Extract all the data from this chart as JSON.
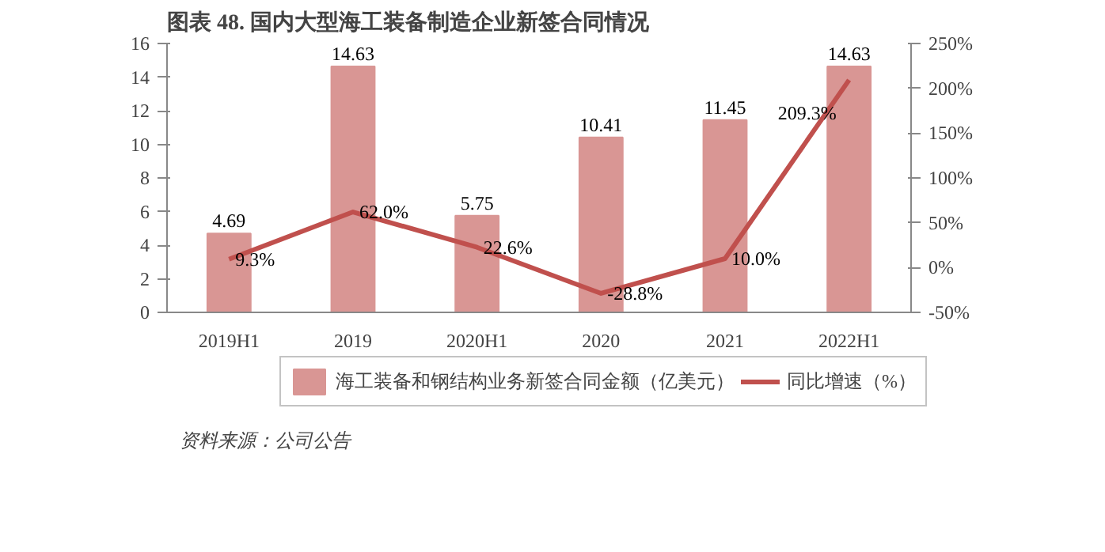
{
  "chart_data": {
    "type": "bar",
    "title": "图表 48. 国内大型海工装备制造企业新签合同情况",
    "categories": [
      "2019H1",
      "2019",
      "2020H1",
      "2020",
      "2021",
      "2022H1"
    ],
    "series": [
      {
        "name": "海工装备和钢结构业务新签合同金额（亿美元）",
        "color": "#d99694",
        "values": [
          4.69,
          14.63,
          5.75,
          10.41,
          11.45,
          14.63
        ],
        "value_labels": [
          "4.69",
          "14.63",
          "5.75",
          "10.41",
          "11.45",
          "14.63"
        ]
      },
      {
        "name": "同比增速（%）",
        "type": "line",
        "axis": "y2",
        "color": "#c0504d",
        "values": [
          9.3,
          62.0,
          22.6,
          -28.8,
          10.0,
          209.3
        ],
        "value_labels": [
          "9.3%",
          "62.0%",
          "22.6%",
          "-28.8%",
          "10.0%",
          "209.3%"
        ]
      }
    ],
    "ylim": [
      0,
      16
    ],
    "yticks": [
      0,
      2,
      4,
      6,
      8,
      10,
      12,
      14,
      16
    ],
    "y2lim": [
      -50,
      250
    ],
    "y2ticks": [
      {
        "value": -50,
        "label": "-50%"
      },
      {
        "value": 0,
        "label": "0%"
      },
      {
        "value": 50,
        "label": "50%"
      },
      {
        "value": 100,
        "label": "100%"
      },
      {
        "value": 150,
        "label": "150%"
      },
      {
        "value": 200,
        "label": "200%"
      },
      {
        "value": 250,
        "label": "250%"
      }
    ],
    "legend": "bottom",
    "grid": false,
    "marker": "none",
    "line_style": "solid",
    "annotations": [
      "资料来源：公司公告"
    ]
  }
}
